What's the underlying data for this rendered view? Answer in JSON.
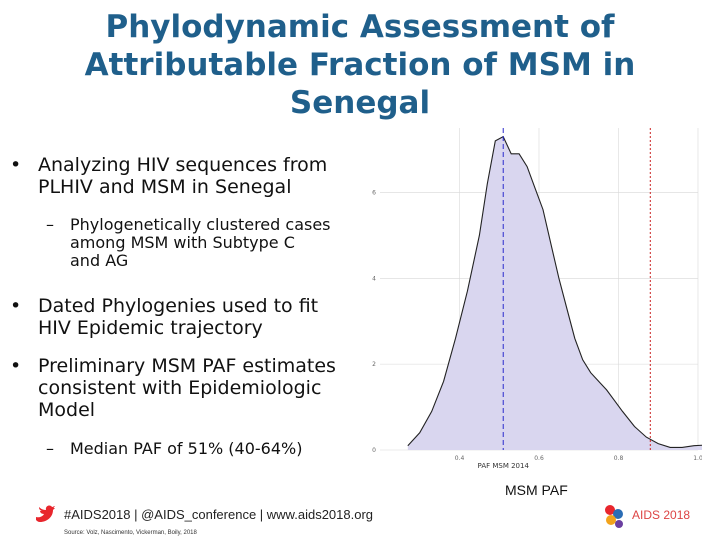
{
  "slide": {
    "title_line1": "Phylodynamic Assessment of",
    "title_line2": "Attributable Fraction of MSM in",
    "title_line3": "Senegal"
  },
  "bullets": {
    "b1_line1": "Analyzing HIV sequences from",
    "b1_line2": "PLHIV and MSM in Senegal",
    "b1_sub_line1": "Phylogenetically clustered cases",
    "b1_sub_line2": "among MSM with Subtype C",
    "b1_sub_line3": "and AG",
    "b2_line1": "Dated Phylogenies used to fit",
    "b2_line2": "HIV Epidemic trajectory",
    "b3_line1": "Preliminary MSM PAF estimates",
    "b3_line2": "consistent with Epidemiologic",
    "b3_line3": "Model",
    "b3_sub_line1": "Median PAF of 51% (40-64%)"
  },
  "chart_data": {
    "type": "area",
    "xlabel": "PAF MSM 2014",
    "caption": "MSM PAF",
    "xlim": [
      0.2,
      1.0
    ],
    "ylim": [
      0,
      7.5
    ],
    "x_ticks": [
      "0.4",
      "0.6",
      "0.8",
      "1.0"
    ],
    "y_ticks": [
      "0",
      "2",
      "4",
      "6"
    ],
    "density": {
      "x": [
        0.27,
        0.3,
        0.33,
        0.36,
        0.39,
        0.42,
        0.45,
        0.47,
        0.49,
        0.51,
        0.53,
        0.55,
        0.57,
        0.59,
        0.61,
        0.63,
        0.65,
        0.67,
        0.69,
        0.71,
        0.73,
        0.75,
        0.77,
        0.79,
        0.81,
        0.84,
        0.87,
        0.9,
        0.93,
        0.96,
        0.99,
        1.03
      ],
      "y": [
        0.1,
        0.4,
        0.9,
        1.6,
        2.6,
        3.7,
        5.0,
        6.2,
        7.2,
        7.3,
        6.9,
        6.9,
        6.6,
        6.1,
        5.6,
        4.8,
        4.0,
        3.3,
        2.6,
        2.1,
        1.8,
        1.6,
        1.4,
        1.15,
        0.9,
        0.55,
        0.3,
        0.15,
        0.06,
        0.06,
        0.1,
        0.12
      ]
    },
    "median_line": 0.51,
    "marker_line": 0.88,
    "colors": {
      "fill": "#d9d6ef",
      "outline": "#222222",
      "median": "#2b2bcc",
      "marker": "#cc2222",
      "grid": "#d8d8d8"
    }
  },
  "footer": {
    "text": "#AIDS2018 | @AIDS_conference | www.aids2018.org",
    "source": "Source: Volz, Nascimento, Vickerman, Boily, 2018",
    "logo_text": "AIDS 2018"
  },
  "icons": {
    "twitter": "twitter-bird-icon",
    "conference": "aids2018-logo-icon"
  }
}
